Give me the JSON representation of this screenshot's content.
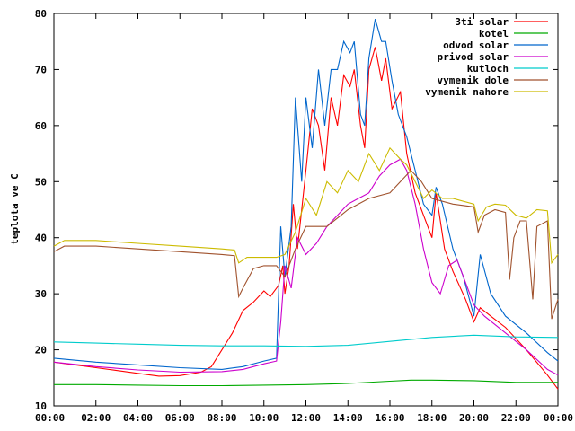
{
  "chart_data": {
    "type": "line",
    "ylabel": "teplota ve C",
    "xlabel": "",
    "ylim": [
      10,
      80
    ],
    "xlim": [
      0,
      24
    ],
    "x_ticks": [
      0,
      2,
      4,
      6,
      8,
      10,
      12,
      14,
      16,
      18,
      20,
      22,
      24
    ],
    "x_tick_labels": [
      "00:00",
      "02:00",
      "04:00",
      "06:00",
      "08:00",
      "10:00",
      "12:00",
      "14:00",
      "16:00",
      "18:00",
      "20:00",
      "22:00",
      "00:00"
    ],
    "y_ticks": [
      10,
      20,
      30,
      40,
      50,
      60,
      70,
      80
    ],
    "y_tick_labels": [
      "10",
      "20",
      "30",
      "40",
      "50",
      "60",
      "70",
      "80"
    ],
    "grid": false,
    "legend_position": "top-right",
    "series": [
      {
        "name": "3ti solar",
        "color": "#ff0000",
        "points": [
          [
            0,
            17.8
          ],
          [
            2,
            16.8
          ],
          [
            4,
            15.8
          ],
          [
            5,
            15.3
          ],
          [
            6,
            15.4
          ],
          [
            7,
            16.0
          ],
          [
            7.5,
            17.0
          ],
          [
            8,
            20.0
          ],
          [
            8.5,
            23.0
          ],
          [
            9,
            27.0
          ],
          [
            9.5,
            28.5
          ],
          [
            10,
            30.5
          ],
          [
            10.3,
            29.5
          ],
          [
            10.7,
            31.5
          ],
          [
            10.9,
            35.0
          ],
          [
            11,
            30.0
          ],
          [
            11.2,
            35.0
          ],
          [
            11.4,
            46.0
          ],
          [
            11.6,
            38.0
          ],
          [
            12,
            52.0
          ],
          [
            12.3,
            63.0
          ],
          [
            12.6,
            60.0
          ],
          [
            12.9,
            52.0
          ],
          [
            13.2,
            65.0
          ],
          [
            13.5,
            60.0
          ],
          [
            13.8,
            69.0
          ],
          [
            14.1,
            67.0
          ],
          [
            14.3,
            70.0
          ],
          [
            14.6,
            60.0
          ],
          [
            14.8,
            56.0
          ],
          [
            15,
            70.0
          ],
          [
            15.3,
            74.0
          ],
          [
            15.6,
            68.0
          ],
          [
            15.8,
            72.0
          ],
          [
            16.1,
            63.0
          ],
          [
            16.5,
            66.0
          ],
          [
            16.8,
            55.0
          ],
          [
            17.2,
            48.0
          ],
          [
            17.6,
            44.0
          ],
          [
            18,
            40.0
          ],
          [
            18.2,
            48.0
          ],
          [
            18.6,
            38.0
          ],
          [
            19,
            34.0
          ],
          [
            19.6,
            29.0
          ],
          [
            20,
            25.0
          ],
          [
            20.3,
            27.5
          ],
          [
            20.8,
            26.0
          ],
          [
            21.5,
            24.0
          ],
          [
            22.5,
            20.0
          ],
          [
            23.5,
            15.5
          ],
          [
            24,
            13.0
          ]
        ]
      },
      {
        "name": "kotel",
        "color": "#00aa00",
        "points": [
          [
            0,
            13.8
          ],
          [
            2,
            13.8
          ],
          [
            4,
            13.7
          ],
          [
            6,
            13.6
          ],
          [
            8,
            13.6
          ],
          [
            10,
            13.7
          ],
          [
            12,
            13.8
          ],
          [
            14,
            14.0
          ],
          [
            16,
            14.4
          ],
          [
            17,
            14.6
          ],
          [
            18,
            14.6
          ],
          [
            20,
            14.5
          ],
          [
            22,
            14.2
          ],
          [
            24,
            14.2
          ]
        ]
      },
      {
        "name": "odvod solar",
        "color": "#0066cc",
        "points": [
          [
            0,
            18.5
          ],
          [
            2,
            17.8
          ],
          [
            4,
            17.3
          ],
          [
            6,
            16.8
          ],
          [
            8,
            16.5
          ],
          [
            9,
            17.0
          ],
          [
            10,
            18.0
          ],
          [
            10.6,
            18.5
          ],
          [
            10.8,
            42.0
          ],
          [
            11,
            33.0
          ],
          [
            11.3,
            42.0
          ],
          [
            11.5,
            65.0
          ],
          [
            11.8,
            50.0
          ],
          [
            12,
            65.0
          ],
          [
            12.3,
            56.0
          ],
          [
            12.6,
            70.0
          ],
          [
            12.9,
            60.0
          ],
          [
            13.2,
            70.0
          ],
          [
            13.5,
            70.0
          ],
          [
            13.8,
            75.0
          ],
          [
            14.1,
            73.0
          ],
          [
            14.3,
            75.0
          ],
          [
            14.6,
            62.0
          ],
          [
            14.8,
            60.0
          ],
          [
            15,
            72.0
          ],
          [
            15.3,
            79.0
          ],
          [
            15.6,
            75.0
          ],
          [
            15.8,
            75.0
          ],
          [
            16.1,
            68.0
          ],
          [
            16.4,
            62.0
          ],
          [
            16.8,
            58.0
          ],
          [
            17.2,
            52.0
          ],
          [
            17.6,
            46.0
          ],
          [
            18,
            44.0
          ],
          [
            18.2,
            49.0
          ],
          [
            18.5,
            46.0
          ],
          [
            19,
            38.0
          ],
          [
            19.5,
            33.0
          ],
          [
            20,
            26.0
          ],
          [
            20.3,
            37.0
          ],
          [
            20.8,
            30.0
          ],
          [
            21.5,
            26.0
          ],
          [
            22.5,
            23.0
          ],
          [
            23.5,
            19.5
          ],
          [
            24,
            18.0
          ]
        ]
      },
      {
        "name": "privod solar",
        "color": "#cc00cc",
        "points": [
          [
            0,
            17.8
          ],
          [
            2,
            17.0
          ],
          [
            4,
            16.4
          ],
          [
            6,
            16.0
          ],
          [
            8,
            16.1
          ],
          [
            9,
            16.5
          ],
          [
            10,
            17.5
          ],
          [
            10.6,
            18.0
          ],
          [
            10.8,
            25.0
          ],
          [
            11,
            35.0
          ],
          [
            11.3,
            31.0
          ],
          [
            11.6,
            40.0
          ],
          [
            12,
            37.0
          ],
          [
            12.5,
            39.0
          ],
          [
            13,
            42.0
          ],
          [
            13.5,
            44.0
          ],
          [
            14,
            46.0
          ],
          [
            14.5,
            47.0
          ],
          [
            15,
            48.0
          ],
          [
            15.5,
            51.0
          ],
          [
            16,
            53.0
          ],
          [
            16.5,
            54.0
          ],
          [
            16.8,
            52.0
          ],
          [
            17.2,
            46.0
          ],
          [
            17.6,
            38.0
          ],
          [
            18,
            32.0
          ],
          [
            18.4,
            30.0
          ],
          [
            18.8,
            35.0
          ],
          [
            19.2,
            36.0
          ],
          [
            19.6,
            32.0
          ],
          [
            20,
            28.0
          ],
          [
            20.5,
            26.0
          ],
          [
            21.5,
            23.0
          ],
          [
            22.5,
            20.0
          ],
          [
            23.5,
            16.5
          ],
          [
            24,
            15.5
          ]
        ]
      },
      {
        "name": "kutloch",
        "color": "#00cccc",
        "points": [
          [
            0,
            21.4
          ],
          [
            2,
            21.2
          ],
          [
            4,
            21.0
          ],
          [
            6,
            20.8
          ],
          [
            8,
            20.7
          ],
          [
            10,
            20.7
          ],
          [
            12,
            20.6
          ],
          [
            14,
            20.8
          ],
          [
            16,
            21.5
          ],
          [
            18,
            22.2
          ],
          [
            20,
            22.6
          ],
          [
            22,
            22.3
          ],
          [
            24,
            22.2
          ]
        ]
      },
      {
        "name": "vymenik dole",
        "color": "#a0522d",
        "points": [
          [
            0,
            37.5
          ],
          [
            0.5,
            38.5
          ],
          [
            2,
            38.5
          ],
          [
            4,
            38.0
          ],
          [
            6,
            37.5
          ],
          [
            8,
            37.0
          ],
          [
            8.6,
            36.8
          ],
          [
            8.8,
            29.5
          ],
          [
            9,
            31.0
          ],
          [
            9.5,
            34.5
          ],
          [
            10,
            35.0
          ],
          [
            10.6,
            35.0
          ],
          [
            11,
            33.0
          ],
          [
            11.5,
            38.0
          ],
          [
            12,
            42.0
          ],
          [
            13,
            42.0
          ],
          [
            14,
            45.0
          ],
          [
            15,
            47.0
          ],
          [
            16,
            48.0
          ],
          [
            16.5,
            50.0
          ],
          [
            17,
            52.0
          ],
          [
            17.5,
            50.0
          ],
          [
            18,
            47.0
          ],
          [
            19,
            46.0
          ],
          [
            20,
            45.5
          ],
          [
            20.2,
            41.0
          ],
          [
            20.5,
            44.0
          ],
          [
            21,
            45.0
          ],
          [
            21.5,
            44.5
          ],
          [
            21.7,
            32.5
          ],
          [
            21.9,
            40.0
          ],
          [
            22.2,
            43.0
          ],
          [
            22.5,
            43.0
          ],
          [
            22.8,
            29.0
          ],
          [
            23,
            42.0
          ],
          [
            23.5,
            43.0
          ],
          [
            23.7,
            25.5
          ],
          [
            24,
            29.0
          ]
        ]
      },
      {
        "name": "vymenik nahore",
        "color": "#ccbb00",
        "points": [
          [
            0,
            38.5
          ],
          [
            0.5,
            39.5
          ],
          [
            2,
            39.5
          ],
          [
            4,
            39.0
          ],
          [
            6,
            38.5
          ],
          [
            8,
            38.0
          ],
          [
            8.6,
            37.8
          ],
          [
            8.8,
            35.5
          ],
          [
            9.2,
            36.5
          ],
          [
            10,
            36.5
          ],
          [
            10.6,
            36.5
          ],
          [
            11,
            37.0
          ],
          [
            11.5,
            41.0
          ],
          [
            12,
            47.0
          ],
          [
            12.5,
            44.0
          ],
          [
            13,
            50.0
          ],
          [
            13.5,
            48.0
          ],
          [
            14,
            52.0
          ],
          [
            14.5,
            50.0
          ],
          [
            15,
            55.0
          ],
          [
            15.5,
            52.0
          ],
          [
            16,
            56.0
          ],
          [
            16.5,
            54.0
          ],
          [
            16.8,
            53.0
          ],
          [
            17.2,
            50.0
          ],
          [
            17.6,
            47.0
          ],
          [
            18,
            48.5
          ],
          [
            18.5,
            47.0
          ],
          [
            19,
            47.0
          ],
          [
            20,
            46.0
          ],
          [
            20.2,
            43.0
          ],
          [
            20.6,
            45.5
          ],
          [
            21,
            46.0
          ],
          [
            21.5,
            45.8
          ],
          [
            22,
            44.0
          ],
          [
            22.5,
            43.5
          ],
          [
            23,
            45.0
          ],
          [
            23.5,
            44.8
          ],
          [
            23.7,
            35.5
          ],
          [
            24,
            37.0
          ]
        ]
      }
    ]
  }
}
